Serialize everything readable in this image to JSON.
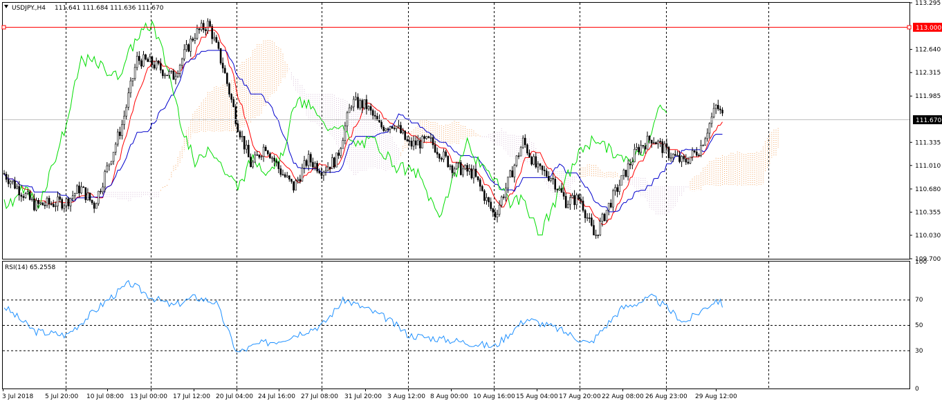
{
  "header": {
    "symbol": "USDJPY.,H4",
    "ohlc": "111.641 111.684 111.636 111.670",
    "menu_icon": "triangle-down-icon"
  },
  "rsi_header": "RSI(14) 65.2558",
  "levels": {
    "hline_label": "113.000",
    "hline_color": "#ff0000",
    "current_label": "111.670"
  },
  "colors": {
    "up_candle": "#000000",
    "down_candle": "#000000",
    "tenkan": "#ff0000",
    "kijun": "#0000cc",
    "chikou": "#00dd00",
    "senkou_a": "#f4a460",
    "senkou_b": "#d8bfd8",
    "rsi": "#1e90ff",
    "grid": "#000000"
  },
  "chart_data": [
    {
      "type": "candlestick",
      "title": "USDJPY.,H4",
      "ylim": [
        109.7,
        113.295
      ],
      "y_ticks": [
        "113.295",
        "112.640",
        "112.315",
        "111.985",
        "111.335",
        "111.010",
        "110.680",
        "110.355",
        "110.030",
        "109.700"
      ],
      "x_ticks": [
        "3 Jul 2018",
        "5 Jul 20:00",
        "10 Jul 08:00",
        "13 Jul 00:00",
        "17 Jul 12:00",
        "20 Jul 04:00",
        "24 Jul 16:00",
        "27 Jul 08:00",
        "31 Jul 20:00",
        "3 Aug 12:00",
        "8 Aug 00:00",
        "10 Aug 16:00",
        "15 Aug 04:00",
        "17 Aug 20:00",
        "22 Aug 08:00",
        "26 Aug 23:00",
        "29 Aug 12:00"
      ],
      "close_anchors": [
        [
          "3 Jul 2018",
          110.9
        ],
        [
          "4 Jul 08:00",
          110.45
        ],
        [
          "5 Jul 20:00",
          110.5
        ],
        [
          "6 Jul 12:00",
          110.7
        ],
        [
          "9 Jul 08:00",
          110.45
        ],
        [
          "10 Jul 08:00",
          111.0
        ],
        [
          "11 Jul 04:00",
          111.6
        ],
        [
          "12 Jul 08:00",
          112.5
        ],
        [
          "13 Jul 00:00",
          112.45
        ],
        [
          "16 Jul 04:00",
          112.25
        ],
        [
          "17 Jul 12:00",
          112.85
        ],
        [
          "18 Jul 20:00",
          113.0
        ],
        [
          "19 Jul 12:00",
          112.4
        ],
        [
          "20 Jul 04:00",
          111.6
        ],
        [
          "20 Jul 20:00",
          111.0
        ],
        [
          "23 Jul 20:00",
          111.3
        ],
        [
          "24 Jul 16:00",
          110.95
        ],
        [
          "25 Jul 12:00",
          110.7
        ],
        [
          "26 Jul 16:00",
          111.1
        ],
        [
          "27 Jul 08:00",
          110.95
        ],
        [
          "30 Jul 08:00",
          111.1
        ],
        [
          "31 Jul 04:00",
          111.9
        ],
        [
          "31 Jul 20:00",
          111.85
        ],
        [
          "1 Aug 16:00",
          111.55
        ],
        [
          "2 Aug 12:00",
          111.6
        ],
        [
          "3 Aug 12:00",
          111.3
        ],
        [
          "6 Aug 08:00",
          111.35
        ],
        [
          "8 Aug 00:00",
          111.0
        ],
        [
          "9 Aug 08:00",
          110.9
        ],
        [
          "10 Aug 16:00",
          110.3
        ],
        [
          "13 Aug 08:00",
          110.8
        ],
        [
          "14 Aug 12:00",
          111.35
        ],
        [
          "15 Aug 04:00",
          110.95
        ],
        [
          "16 Aug 08:00",
          110.85
        ],
        [
          "16 Aug 20:00",
          110.5
        ],
        [
          "17 Aug 20:00",
          110.55
        ],
        [
          "20 Aug 04:00",
          110.0
        ],
        [
          "21 Aug 04:00",
          110.45
        ],
        [
          "22 Aug 08:00",
          110.85
        ],
        [
          "23 Aug 08:00",
          111.25
        ],
        [
          "24 Aug 00:00",
          111.4
        ],
        [
          "26 Aug 23:00",
          111.2
        ],
        [
          "27 Aug 20:00",
          111.05
        ],
        [
          "28 Aug 12:00",
          111.25
        ],
        [
          "29 Aug 12:00",
          111.85
        ],
        [
          "30 Aug 04:00",
          111.67
        ]
      ],
      "indicators": [
        "Ichimoku: Tenkan-sen",
        "Ichimoku: Kijun-sen",
        "Ichimoku: Chikou Span",
        "Ichimoku: Senkou Span A",
        "Ichimoku: Senkou Span B"
      ],
      "horizontal_line": 113.0,
      "last_price": 111.67
    },
    {
      "type": "line",
      "title": "RSI(14) 65.2558",
      "ylim": [
        0,
        100
      ],
      "y_ticks": [
        "100",
        "70",
        "50",
        "30",
        "0"
      ],
      "levels": [
        70,
        50,
        30
      ],
      "last_value": 65.2558,
      "anchors": [
        [
          "3 Jul 2018",
          65
        ],
        [
          "4 Jul 08:00",
          45
        ],
        [
          "5 Jul 20:00",
          42
        ],
        [
          "10 Jul 08:00",
          70
        ],
        [
          "12 Jul 08:00",
          83
        ],
        [
          "13 Jul 00:00",
          72
        ],
        [
          "16 Jul 04:00",
          65
        ],
        [
          "17 Jul 12:00",
          72
        ],
        [
          "18 Jul 20:00",
          68
        ],
        [
          "20 Jul 04:00",
          28
        ],
        [
          "20 Jul 20:00",
          35
        ],
        [
          "24 Jul 16:00",
          38
        ],
        [
          "27 Jul 08:00",
          50
        ],
        [
          "31 Jul 04:00",
          70
        ],
        [
          "31 Jul 20:00",
          63
        ],
        [
          "2 Aug 12:00",
          55
        ],
        [
          "3 Aug 12:00",
          42
        ],
        [
          "8 Aug 00:00",
          38
        ],
        [
          "10 Aug 16:00",
          33
        ],
        [
          "14 Aug 12:00",
          55
        ],
        [
          "16 Aug 20:00",
          47
        ],
        [
          "20 Aug 04:00",
          35
        ],
        [
          "23 Aug 08:00",
          63
        ],
        [
          "24 Aug 00:00",
          72
        ],
        [
          "27 Aug 20:00",
          52
        ],
        [
          "29 Aug 12:00",
          70
        ],
        [
          "30 Aug 04:00",
          65.26
        ]
      ]
    }
  ]
}
